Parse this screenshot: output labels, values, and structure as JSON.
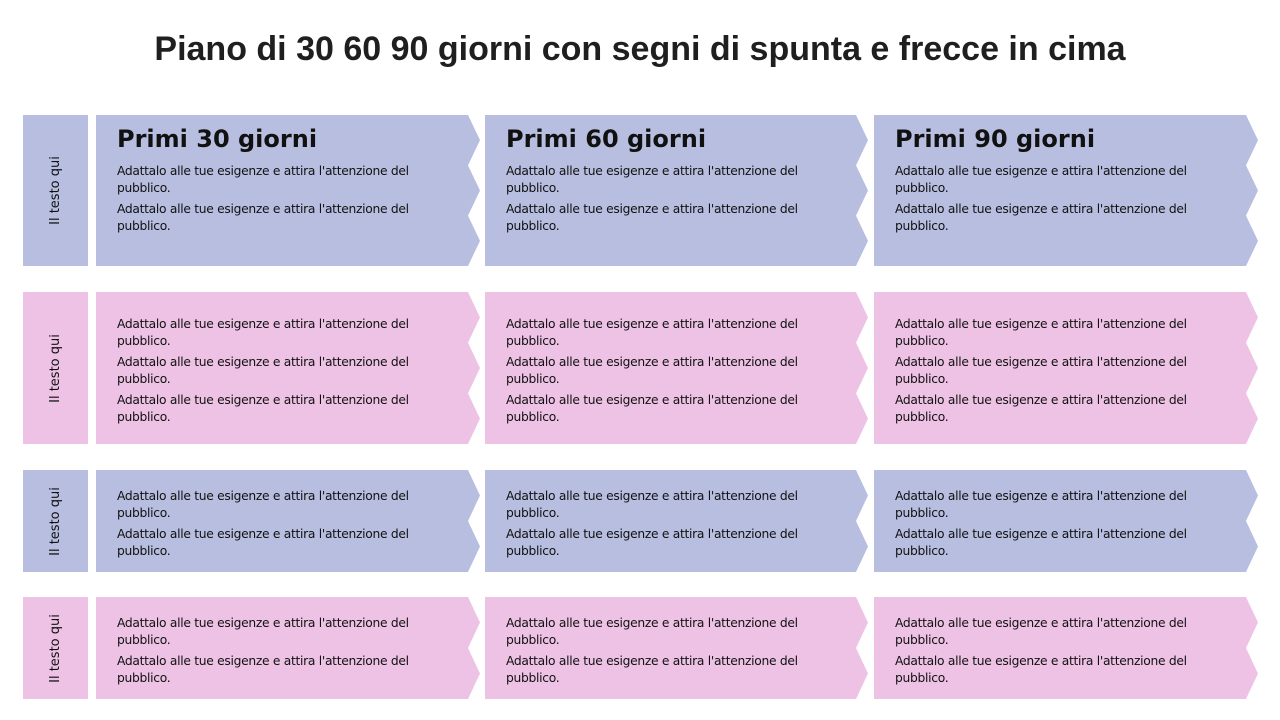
{
  "title": "Piano di 30 60 90 giorni con segni di spunta e frecce in cima",
  "colors": {
    "blue": "#b8bee0",
    "pink": "#eec2e5"
  },
  "rows": [
    {
      "label": "Il testo qui",
      "color": "blue",
      "cells": [
        {
          "heading": "Primi 30 giorni",
          "items": [
            "Adattalo alle tue esigenze e attira l'attenzione del pubblico.",
            "Adattalo alle tue esigenze e attira l'attenzione del pubblico."
          ]
        },
        {
          "heading": "Primi 60 giorni",
          "items": [
            "Adattalo alle tue esigenze e attira l'attenzione del pubblico.",
            "Adattalo alle tue esigenze e attira l'attenzione del pubblico."
          ]
        },
        {
          "heading": "Primi 90 giorni",
          "items": [
            "Adattalo alle tue esigenze e attira l'attenzione del pubblico.",
            "Adattalo alle tue esigenze e attira l'attenzione del pubblico."
          ]
        }
      ]
    },
    {
      "label": "Il testo qui",
      "color": "pink",
      "cells": [
        {
          "items": [
            "Adattalo alle tue esigenze e attira l'attenzione del pubblico.",
            "Adattalo alle tue esigenze e attira l'attenzione del pubblico.",
            "Adattalo alle tue esigenze e attira l'attenzione del pubblico."
          ]
        },
        {
          "items": [
            "Adattalo alle tue esigenze e attira l'attenzione del pubblico.",
            "Adattalo alle tue esigenze e attira l'attenzione del pubblico.",
            "Adattalo alle tue esigenze e attira l'attenzione del pubblico."
          ]
        },
        {
          "items": [
            "Adattalo alle tue esigenze e attira l'attenzione del pubblico.",
            "Adattalo alle tue esigenze e attira l'attenzione del pubblico.",
            "Adattalo alle tue esigenze e attira l'attenzione del pubblico."
          ]
        }
      ]
    },
    {
      "label": "Il testo qui",
      "color": "blue",
      "cells": [
        {
          "items": [
            "Adattalo alle tue esigenze e attira l'attenzione del pubblico.",
            "Adattalo alle tue esigenze e attira l'attenzione del pubblico."
          ]
        },
        {
          "items": [
            "Adattalo alle tue esigenze e attira l'attenzione del pubblico.",
            "Adattalo alle tue esigenze e attira l'attenzione del pubblico."
          ]
        },
        {
          "items": [
            "Adattalo alle tue esigenze e attira l'attenzione del pubblico.",
            "Adattalo alle tue esigenze e attira l'attenzione del pubblico."
          ]
        }
      ]
    },
    {
      "label": "Il testo qui",
      "color": "pink",
      "cells": [
        {
          "items": [
            "Adattalo alle tue esigenze e attira l'attenzione del pubblico.",
            "Adattalo alle tue esigenze e attira l'attenzione del pubblico."
          ]
        },
        {
          "items": [
            "Adattalo alle tue esigenze e attira l'attenzione del pubblico.",
            "Adattalo alle tue esigenze e attira l'attenzione del pubblico."
          ]
        },
        {
          "items": [
            "Adattalo alle tue esigenze e attira l'attenzione del pubblico.",
            "Adattalo alle tue esigenze e attira l'attenzione del pubblico."
          ]
        }
      ]
    }
  ]
}
